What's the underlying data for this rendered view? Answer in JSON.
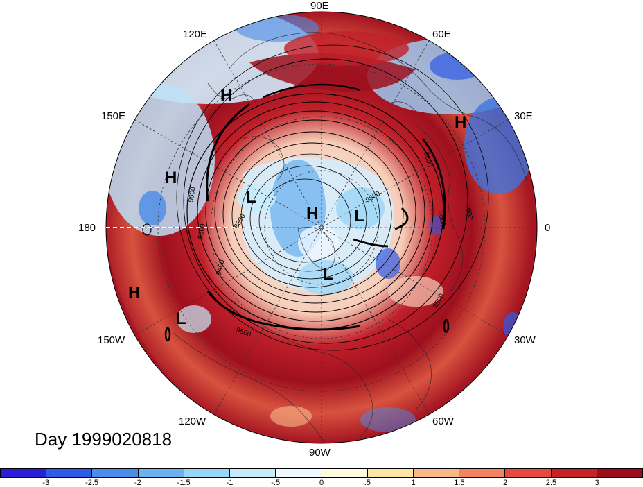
{
  "title": "Day 1999020818",
  "longitude_labels": {
    "e90": "90E",
    "e120": "120E",
    "e60": "60E",
    "e150": "150E",
    "e30": "30E",
    "lon180": "180",
    "lon0": "0",
    "w150": "150W",
    "w30": "30W",
    "w120": "120W",
    "w60": "60W",
    "w90": "90W"
  },
  "pressure_markers": {
    "h1": "H",
    "h2": "H",
    "h3": "H",
    "h4": "H",
    "h5": "H",
    "l1": "L",
    "l2": "L",
    "l3": "L",
    "l4": "L"
  },
  "contour_labels": {
    "c1": "9600",
    "c2": "9500",
    "c3": "9400",
    "c4": "8800",
    "c5": "9500",
    "c6": "9500",
    "c7": "9600",
    "c8": "9500",
    "c9": "9500",
    "c10": "9600"
  },
  "colorbar": {
    "colors": [
      "#2a1fd6",
      "#2f5ae6",
      "#4a8ce8",
      "#6cb2ef",
      "#98d6f6",
      "#c6ecfb",
      "#eefaff",
      "#fffbe0",
      "#fde6a6",
      "#f8b98a",
      "#f0855f",
      "#e44a3f",
      "#c72128",
      "#9b0d1c"
    ],
    "tick_labels": [
      "-3",
      "-2.5",
      "-2",
      "-1.5",
      "-1",
      "-.5",
      "0",
      ".5",
      "1",
      "1.5",
      "2",
      "2.5",
      "3"
    ]
  }
}
